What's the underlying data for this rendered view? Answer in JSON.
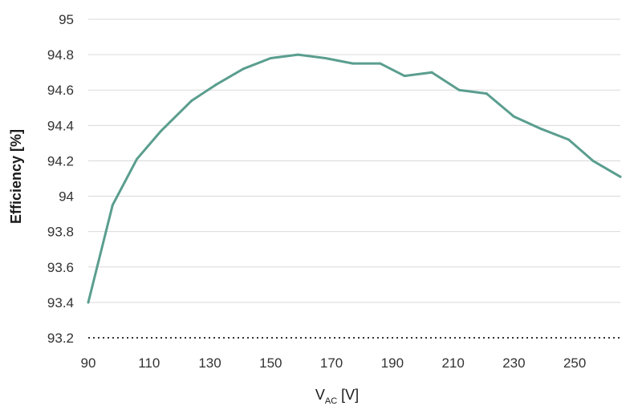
{
  "chart_data": {
    "type": "line",
    "title": "",
    "xlabel": {
      "main": "V",
      "sub": "AC",
      "unit": " [V]"
    },
    "ylabel": "Efficiency [%]",
    "xlim": [
      90,
      265
    ],
    "ylim": [
      93.2,
      95
    ],
    "xticks": [
      90,
      110,
      130,
      150,
      170,
      190,
      210,
      230,
      250
    ],
    "yticks": [
      "93.2",
      "93.4",
      "93.6",
      "93.8",
      "94",
      "94.2",
      "94.4",
      "94.6",
      "94.8",
      "95"
    ],
    "grid": true,
    "legend": "none",
    "series": [
      {
        "color": "#5a9e8f",
        "x": [
          90,
          98,
          106,
          114,
          124,
          132,
          141,
          150,
          159,
          168,
          177,
          186,
          194,
          203,
          212,
          221,
          230,
          239,
          248,
          256,
          265
        ],
        "y": [
          93.4,
          93.95,
          94.21,
          94.37,
          94.54,
          94.63,
          94.72,
          94.78,
          94.8,
          94.78,
          94.75,
          94.75,
          94.68,
          94.7,
          94.6,
          94.58,
          94.45,
          94.38,
          94.32,
          94.2,
          94.11
        ]
      }
    ]
  }
}
